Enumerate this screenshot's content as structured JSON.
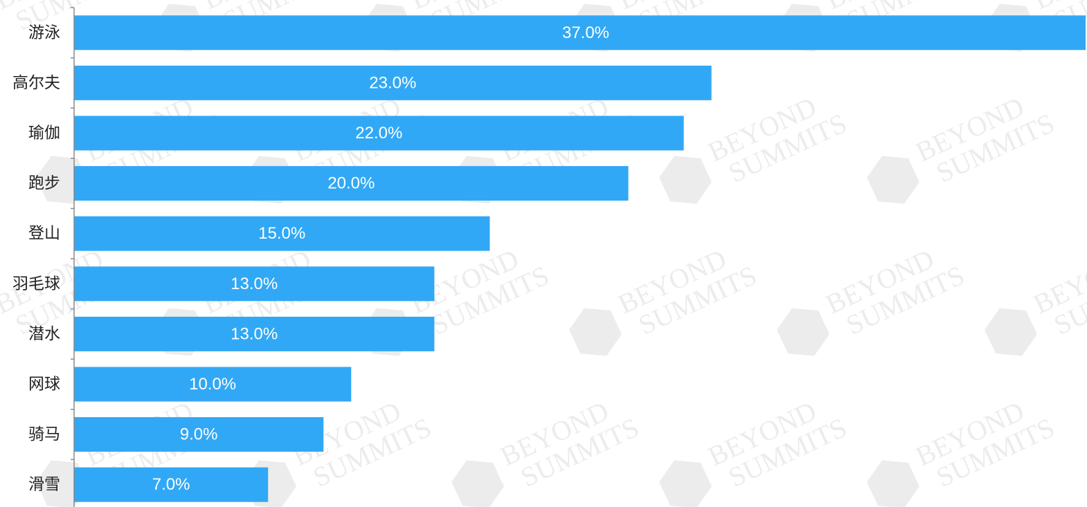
{
  "chart_data": {
    "type": "bar",
    "orientation": "horizontal",
    "categories": [
      "游泳",
      "高尔夫",
      "瑜伽",
      "跑步",
      "登山",
      "羽毛球",
      "潜水",
      "网球",
      "骑马",
      "滑雪"
    ],
    "values": [
      37.0,
      23.0,
      22.0,
      20.0,
      15.0,
      13.0,
      13.0,
      10.0,
      9.0,
      7.0
    ],
    "value_labels": [
      "37.0%",
      "23.0%",
      "22.0%",
      "20.0%",
      "15.0%",
      "13.0%",
      "13.0%",
      "10.0%",
      "9.0%",
      "7.0%"
    ],
    "unit": "%",
    "xlim": [
      0,
      36.5
    ],
    "bar_color": "#31a8f5",
    "axis_color": "#888888",
    "label_color": "#222222",
    "value_label_color": "#ffffff",
    "grid": false,
    "legend": "none",
    "title": "",
    "xlabel": "",
    "ylabel": ""
  },
  "watermark": {
    "lines": [
      "BEYOND",
      "SUMMITS"
    ],
    "color": "#ececec"
  }
}
